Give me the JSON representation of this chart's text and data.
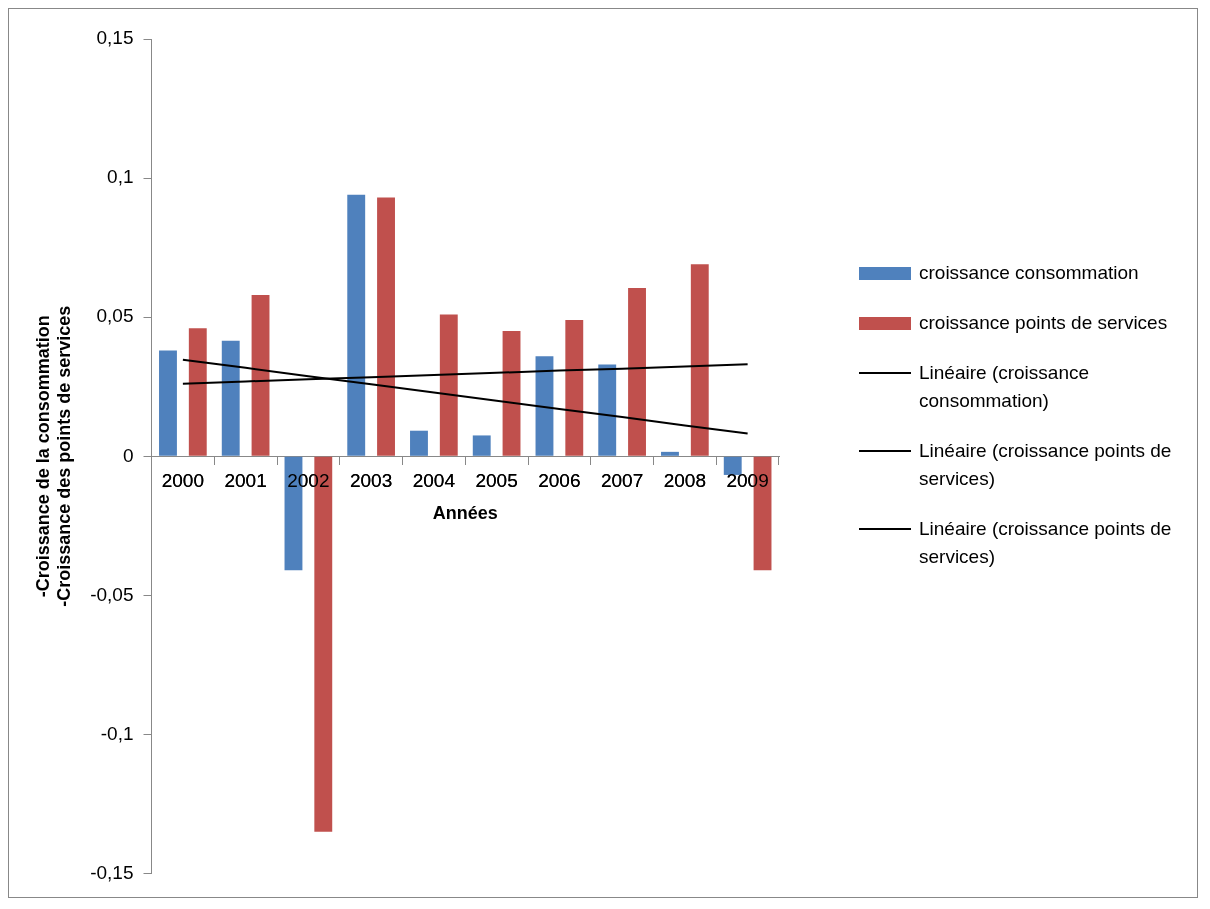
{
  "chart_data": {
    "type": "bar",
    "xlabel": "Années",
    "ylabel": "-Croissance de la consommation\n-Croissance des points de services",
    "categories": [
      "2000",
      "2001",
      "2002",
      "2003",
      "2004",
      "2005",
      "2006",
      "2007",
      "2008",
      "2009"
    ],
    "series": [
      {
        "name": "croissance consommation",
        "color": "#4f81bd",
        "values": [
          0.038,
          0.0415,
          -0.041,
          0.094,
          0.0092,
          0.0075,
          0.036,
          0.033,
          0.0016,
          -0.0067
        ]
      },
      {
        "name": "croissance points de services",
        "color": "#c0504d",
        "values": [
          0.046,
          0.058,
          -0.135,
          0.093,
          0.051,
          0.045,
          0.049,
          0.0605,
          0.069,
          -0.041
        ]
      },
      {
        "name": "Linéaire (croissance consommation)",
        "type": "line",
        "color": "#000000",
        "values": [
          0.0347,
          0.0318,
          0.0288,
          0.0259,
          0.0229,
          0.02,
          0.017,
          0.0141,
          0.0111,
          0.0082
        ]
      },
      {
        "name": "Linéaire (croissance points de services)",
        "type": "line",
        "color": "#000000",
        "values": [
          0.0261,
          0.0269,
          0.0277,
          0.0284,
          0.0292,
          0.03,
          0.0308,
          0.0315,
          0.0323,
          0.0331
        ]
      },
      {
        "name": "Linéaire (croissance points de services)",
        "type": "line",
        "color": "#000000",
        "values": [
          null,
          null,
          null,
          null,
          null,
          null,
          null,
          null,
          null,
          null
        ]
      }
    ],
    "ylim": [
      -0.15,
      0.15
    ],
    "yticks": [
      {
        "value": -0.15,
        "label": "-0,15"
      },
      {
        "value": -0.1,
        "label": "-0,1"
      },
      {
        "value": -0.05,
        "label": "-0,05"
      },
      {
        "value": 0,
        "label": "0"
      },
      {
        "value": 0.05,
        "label": "0,05"
      },
      {
        "value": 0.1,
        "label": "0,1"
      },
      {
        "value": 0.15,
        "label": "0,15"
      }
    ],
    "grid": false,
    "legend": "right",
    "marker": "none",
    "line_style": "solid"
  }
}
